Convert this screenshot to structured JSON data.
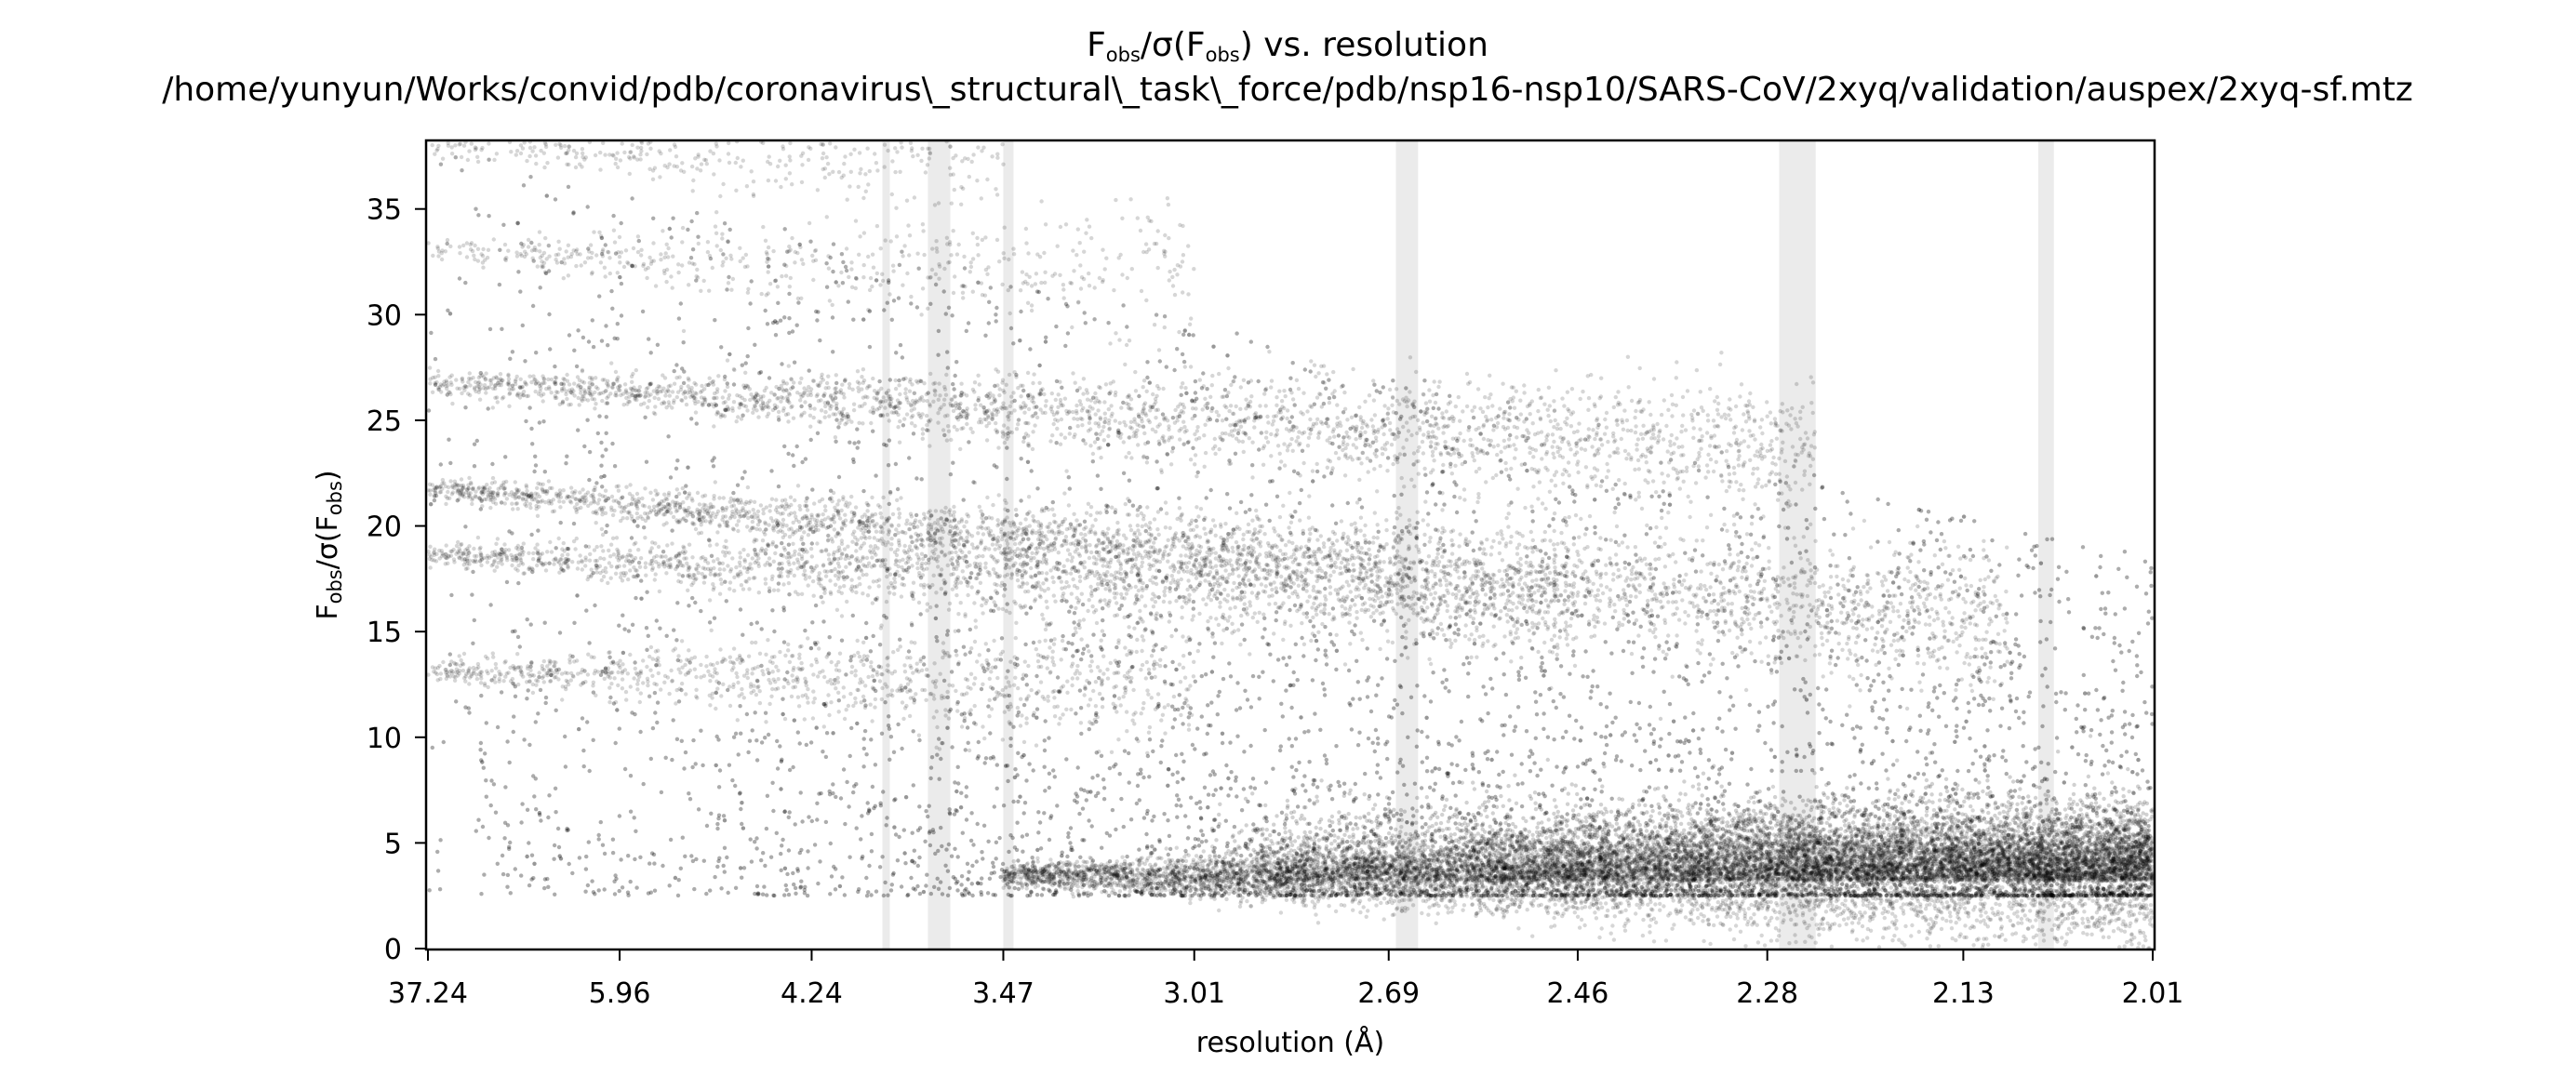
{
  "chart_data": {
    "type": "scatter",
    "title": {
      "main_prefix": "F",
      "main_sub_1": "obs",
      "main_mid": "/σ(F",
      "main_sub_2": "obs",
      "main_suffix": ") vs. resolution",
      "path": "/home/yunyun/Works/convid/pdb/coronavirus\\_structural\\_task\\_force/pdb/nsp16-nsp10/SARS-CoV/2xyq/validation/auspex/2xyq-sf.mtz"
    },
    "xlabel": "resolution (Å)",
    "ylabel": {
      "prefix": "F",
      "sub_1": "obs",
      "mid": "/σ(F",
      "sub_2": "obs",
      "suffix": ")"
    },
    "x_scale": "inverse-square-resolution",
    "x_ticks": [
      "37.24",
      "5.96",
      "4.24",
      "3.47",
      "3.01",
      "2.69",
      "2.46",
      "2.28",
      "2.13",
      "2.01"
    ],
    "xlim_resolution": [
      37.24,
      2.01
    ],
    "ylim": [
      0,
      38.2
    ],
    "y_ticks": [
      0,
      5,
      10,
      15,
      20,
      25,
      30,
      35
    ],
    "grid": false,
    "legend": "none",
    "point_color": "#000000",
    "ice_ring_color": "#ebebeb",
    "ice_ring_bands_resolution": [
      [
        3.9,
        3.87
      ],
      [
        3.72,
        3.64
      ],
      [
        3.47,
        3.44
      ],
      [
        2.68,
        2.65
      ],
      [
        2.27,
        2.24
      ],
      [
        2.08,
        2.07
      ]
    ],
    "series": [
      {
        "values": {
          "description_free": true,
          "point_clusters": [
            {
              "res_from": 37.24,
              "res_to": 2.24,
              "y_start": 26.8,
              "y_end": 23.5,
              "weight": 0.15
            },
            {
              "res_from": 37.24,
              "res_to": 2.1,
              "y_start": 21.8,
              "y_end": 15.5,
              "weight": 0.2
            },
            {
              "res_from": 37.24,
              "res_to": 2.46,
              "y_start": 18.6,
              "y_end": 16.8,
              "weight": 0.13
            },
            {
              "res_from": 37.24,
              "res_to": 3.01,
              "y_start": 13.1,
              "y_end": 12.6,
              "weight": 0.06
            },
            {
              "res_from": 37.24,
              "res_to": 3.01,
              "y_start": 33.0,
              "y_end": 32.0,
              "weight": 0.03
            },
            {
              "res_from": 37.24,
              "res_to": 3.47,
              "y_start": 38.0,
              "y_end": 37.8,
              "weight": 0.03
            },
            {
              "res_from": 3.47,
              "res_to": 2.01,
              "y_start": 3.5,
              "y_end": 3.0,
              "weight": 0.4
            }
          ]
        }
      }
    ]
  }
}
